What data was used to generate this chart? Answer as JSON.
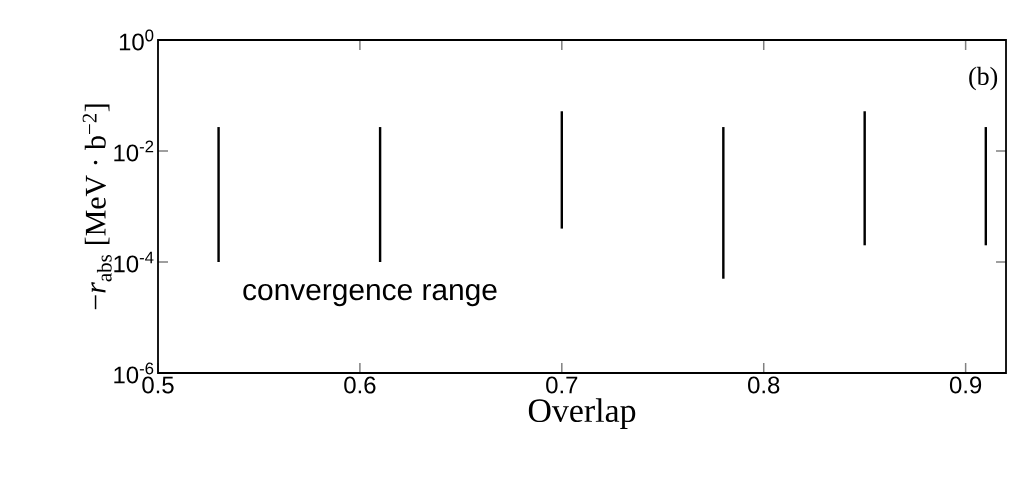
{
  "chart_data": {
    "type": "bar",
    "xlabel": "Overlap",
    "ylabel": "−*r*$_{abs}$ [MeV · b$^{−2}$]",
    "log": "y",
    "color": "#000000",
    "x": [
      0.53,
      0.61,
      0.7,
      0.78,
      0.85,
      0.91
    ],
    "base": [
      0.0001,
      0.0001,
      0.0004,
      5e-05,
      0.0002,
      0.0002
    ],
    "values": [
      0.0269,
      0.0269,
      0.0516,
      0.02695,
      0.0518,
      0.0268
    ],
    "xlim": [
      0.5,
      0.92
    ],
    "xticks": [
      0.5,
      0.6,
      0.7,
      0.8,
      0.9
    ],
    "ylim": [
      1e-06,
      1
    ],
    "yticks": [
      {
        "value": 1,
        "label": "10$^{0}$"
      },
      {
        "value": 0.01,
        "label": "10$^{-2}$"
      },
      {
        "value": 0.0001,
        "label": "10$^{-4}$"
      },
      {
        "value": 1e-06,
        "label": "10$^{-6}$"
      }
    ],
    "annotations": [
      "convergence range",
      "(b)"
    ]
  }
}
